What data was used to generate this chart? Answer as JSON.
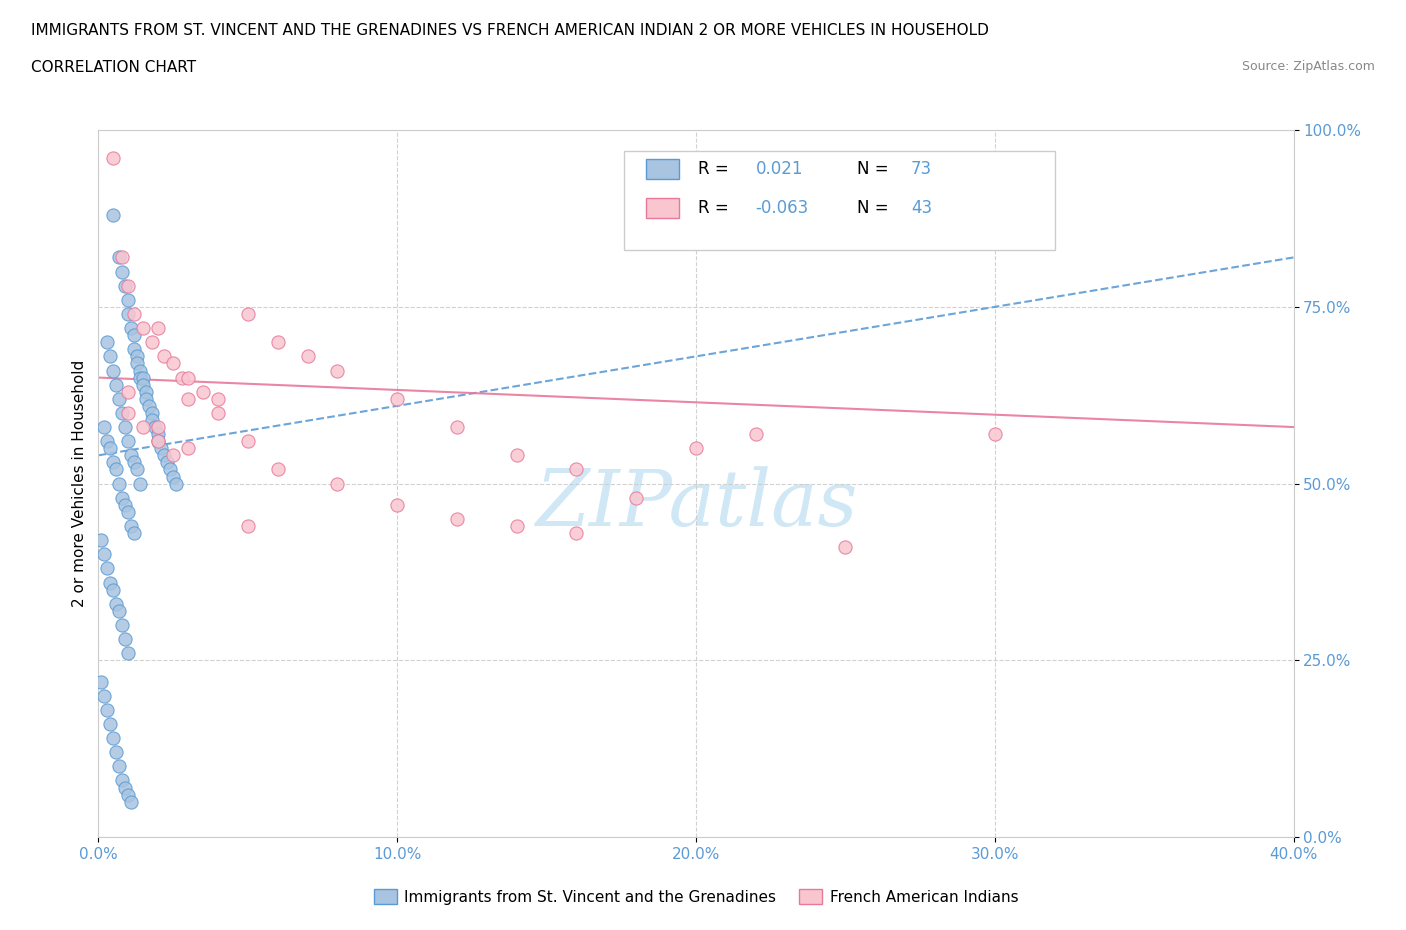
{
  "title_line1": "IMMIGRANTS FROM ST. VINCENT AND THE GRENADINES VS FRENCH AMERICAN INDIAN 2 OR MORE VEHICLES IN HOUSEHOLD",
  "title_line2": "CORRELATION CHART",
  "source_text": "Source: ZipAtlas.com",
  "ytick_values": [
    0,
    25,
    50,
    75,
    100
  ],
  "xtick_values": [
    0,
    10,
    20,
    30,
    40
  ],
  "legend_label1": "Immigrants from St. Vincent and the Grenadines",
  "legend_label2": "French American Indians",
  "R1": "0.021",
  "N1": "73",
  "R2": "-0.063",
  "N2": "43",
  "blue_fill": "#a8c4e0",
  "blue_edge": "#5b9bd5",
  "pink_fill": "#f9c6d0",
  "pink_edge": "#e8799a",
  "blue_line_color": "#5b9bd5",
  "pink_line_color": "#e8799a",
  "watermark_color": "#d0e8f5",
  "blue_scatter_x": [
    0.5,
    0.7,
    0.8,
    0.9,
    1.0,
    1.0,
    1.1,
    1.2,
    1.2,
    1.3,
    1.3,
    1.4,
    1.4,
    1.5,
    1.5,
    1.6,
    1.6,
    1.7,
    1.8,
    1.8,
    1.9,
    2.0,
    2.0,
    2.1,
    2.2,
    2.3,
    2.4,
    2.5,
    2.6,
    0.3,
    0.4,
    0.5,
    0.6,
    0.7,
    0.8,
    0.9,
    1.0,
    1.1,
    1.2,
    1.3,
    1.4,
    0.2,
    0.3,
    0.4,
    0.5,
    0.6,
    0.7,
    0.8,
    0.9,
    1.0,
    1.1,
    1.2,
    0.1,
    0.2,
    0.3,
    0.4,
    0.5,
    0.6,
    0.7,
    0.8,
    0.9,
    1.0,
    0.1,
    0.2,
    0.3,
    0.4,
    0.5,
    0.6,
    0.7,
    0.8,
    0.9,
    1.0,
    1.1
  ],
  "blue_scatter_y": [
    88,
    82,
    80,
    78,
    76,
    74,
    72,
    71,
    69,
    68,
    67,
    66,
    65,
    65,
    64,
    63,
    62,
    61,
    60,
    59,
    58,
    57,
    56,
    55,
    54,
    53,
    52,
    51,
    50,
    70,
    68,
    66,
    64,
    62,
    60,
    58,
    56,
    54,
    53,
    52,
    50,
    58,
    56,
    55,
    53,
    52,
    50,
    48,
    47,
    46,
    44,
    43,
    42,
    40,
    38,
    36,
    35,
    33,
    32,
    30,
    28,
    26,
    22,
    20,
    18,
    16,
    14,
    12,
    10,
    8,
    7,
    6,
    5
  ],
  "pink_scatter_x": [
    0.5,
    0.8,
    1.0,
    1.2,
    1.5,
    1.8,
    2.0,
    2.2,
    2.5,
    2.8,
    3.0,
    3.5,
    4.0,
    5.0,
    6.0,
    7.0,
    8.0,
    10.0,
    12.0,
    14.0,
    16.0,
    18.0,
    22.0,
    1.0,
    1.5,
    2.0,
    2.5,
    3.0,
    4.0,
    5.0,
    6.0,
    8.0,
    10.0,
    12.0,
    14.0,
    16.0,
    20.0,
    25.0,
    1.0,
    2.0,
    3.0,
    5.0,
    30.0
  ],
  "pink_scatter_y": [
    96,
    82,
    78,
    74,
    72,
    70,
    72,
    68,
    67,
    65,
    65,
    63,
    62,
    74,
    70,
    68,
    66,
    62,
    58,
    54,
    52,
    48,
    57,
    60,
    58,
    56,
    54,
    62,
    60,
    56,
    52,
    50,
    47,
    45,
    44,
    43,
    55,
    41,
    63,
    58,
    55,
    44,
    57
  ],
  "blue_trend_x0": 0,
  "blue_trend_x1": 40,
  "blue_trend_y0": 54,
  "blue_trend_y1": 82,
  "pink_trend_x0": 0,
  "pink_trend_x1": 40,
  "pink_trend_y0": 65,
  "pink_trend_y1": 58,
  "ylabel": "2 or more Vehicles in Household",
  "xlim": [
    0,
    40
  ],
  "ylim": [
    0,
    100
  ]
}
